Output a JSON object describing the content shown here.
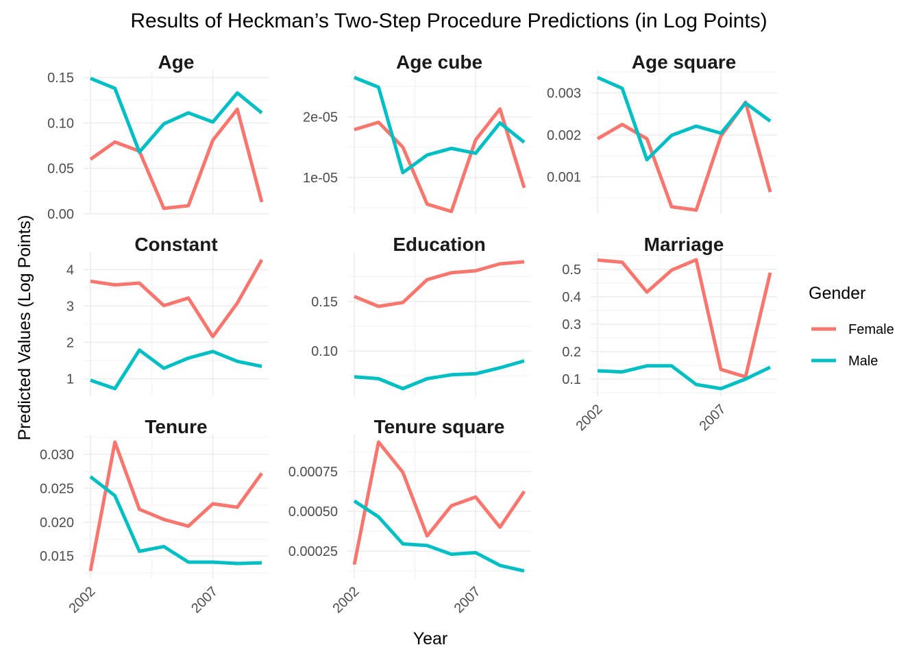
{
  "chart_title": "Results of Heckman’s Two-Step Procedure Predictions (in Log Points)",
  "chart_data": {
    "type": "line",
    "title": "Results of Heckman’s Two-Step Procedure Predictions (in Log Points)",
    "xlabel": "Year",
    "ylabel": "Predicted Values (Log Points)",
    "x": [
      2002,
      2003,
      2004,
      2005,
      2006,
      2007,
      2008,
      2009
    ],
    "x_tick_labels": [
      "2002",
      "2007"
    ],
    "legend": {
      "title": "Gender",
      "placement": "right",
      "entries": [
        "Female",
        "Male"
      ]
    },
    "colors": {
      "Female": "#F8766D",
      "Male": "#00BFC4"
    },
    "grid": true,
    "panels": [
      {
        "title": "Age",
        "ylim": [
          0,
          0.15
        ],
        "y_ticks": [
          0.0,
          0.05,
          0.1,
          0.15
        ],
        "y_tick_labels": [
          "0.00",
          "0.05",
          "0.10",
          "0.15"
        ],
        "series": [
          {
            "name": "Female",
            "values": [
              0.06,
              0.079,
              0.069,
              0.006,
              0.009,
              0.081,
              0.115,
              0.013
            ]
          },
          {
            "name": "Male",
            "values": [
              0.149,
              0.138,
              0.068,
              0.099,
              0.111,
              0.101,
              0.133,
              0.111
            ]
          }
        ]
      },
      {
        "title": "Age cube",
        "ylim": [
          4e-06,
          2.65e-05
        ],
        "y_ticks": [
          1e-05,
          2e-05
        ],
        "y_tick_labels": [
          "1e-05",
          "2e-05"
        ],
        "series": [
          {
            "name": "Female",
            "values": [
              1.79e-05,
              1.91e-05,
              1.5e-05,
              5.6e-06,
              4.4e-06,
              1.62e-05,
              2.13e-05,
              8.3e-06
            ]
          },
          {
            "name": "Male",
            "values": [
              2.65e-05,
              2.49e-05,
              1.08e-05,
              1.37e-05,
              1.48e-05,
              1.4e-05,
              1.9e-05,
              1.58e-05
            ]
          }
        ]
      },
      {
        "title": "Age square",
        "ylim": [
          0.00012,
          0.00337
        ],
        "y_ticks": [
          0.001,
          0.002,
          0.003
        ],
        "y_tick_labels": [
          "0.001",
          "0.002",
          "0.003"
        ],
        "series": [
          {
            "name": "Female",
            "values": [
              0.00191,
              0.00225,
              0.00191,
              0.00029,
              0.00021,
              0.00197,
              0.00278,
              0.00064
            ]
          },
          {
            "name": "Male",
            "values": [
              0.00337,
              0.00311,
              0.00141,
              0.00199,
              0.00221,
              0.00204,
              0.00276,
              0.00233
            ]
          }
        ]
      },
      {
        "title": "Constant",
        "ylim": [
          0.73,
          4.27
        ],
        "y_ticks": [
          1,
          2,
          3,
          4
        ],
        "y_tick_labels": [
          "1",
          "2",
          "3",
          "4"
        ],
        "series": [
          {
            "name": "Female",
            "values": [
              3.68,
              3.58,
              3.63,
              3.01,
              3.22,
              2.16,
              3.08,
              4.27
            ]
          },
          {
            "name": "Male",
            "values": [
              0.96,
              0.73,
              1.79,
              1.29,
              1.57,
              1.75,
              1.48,
              1.34
            ]
          }
        ]
      },
      {
        "title": "Education",
        "ylim": [
          0.062,
          0.19
        ],
        "y_ticks": [
          0.1,
          0.15
        ],
        "y_tick_labels": [
          "0.10",
          "0.15"
        ],
        "series": [
          {
            "name": "Female",
            "values": [
              0.155,
              0.145,
              0.149,
              0.172,
              0.179,
              0.181,
              0.188,
              0.19
            ]
          },
          {
            "name": "Male",
            "values": [
              0.074,
              0.072,
              0.062,
              0.072,
              0.076,
              0.077,
              0.083,
              0.09
            ]
          }
        ]
      },
      {
        "title": "Marriage",
        "ylim": [
          0.065,
          0.535
        ],
        "y_ticks": [
          0.1,
          0.2,
          0.3,
          0.4,
          0.5
        ],
        "y_tick_labels": [
          "0.1",
          "0.2",
          "0.3",
          "0.4",
          "0.5"
        ],
        "series": [
          {
            "name": "Female",
            "values": [
              0.534,
              0.526,
              0.417,
              0.497,
              0.535,
              0.135,
              0.108,
              0.488
            ]
          },
          {
            "name": "Male",
            "values": [
              0.13,
              0.126,
              0.148,
              0.148,
              0.08,
              0.065,
              0.1,
              0.143
            ]
          }
        ]
      },
      {
        "title": "Tenure",
        "ylim": [
          0.0128,
          0.0318
        ],
        "y_ticks": [
          0.015,
          0.02,
          0.025,
          0.03
        ],
        "y_tick_labels": [
          "0.015",
          "0.020",
          "0.025",
          "0.030"
        ],
        "series": [
          {
            "name": "Female",
            "values": [
              0.0128,
              0.0318,
              0.0219,
              0.0204,
              0.0194,
              0.0227,
              0.0222,
              0.0272
            ]
          },
          {
            "name": "Male",
            "values": [
              0.0267,
              0.0239,
              0.0157,
              0.0164,
              0.0141,
              0.0141,
              0.0139,
              0.014
            ]
          }
        ]
      },
      {
        "title": "Tenure square",
        "ylim": [
          0.000125,
          0.000935
        ],
        "y_ticks": [
          0.00025,
          0.0005,
          0.00075
        ],
        "y_tick_labels": [
          "0.00025",
          "0.00050",
          "0.00075"
        ],
        "series": [
          {
            "name": "Female",
            "values": [
              0.000165,
              0.000935,
              0.000745,
              0.000345,
              0.000535,
              0.00059,
              0.0004,
              0.000625
            ]
          },
          {
            "name": "Male",
            "values": [
              0.000565,
              0.000465,
              0.000295,
              0.000285,
              0.00023,
              0.00024,
              0.00016,
              0.000125
            ]
          }
        ]
      }
    ]
  }
}
